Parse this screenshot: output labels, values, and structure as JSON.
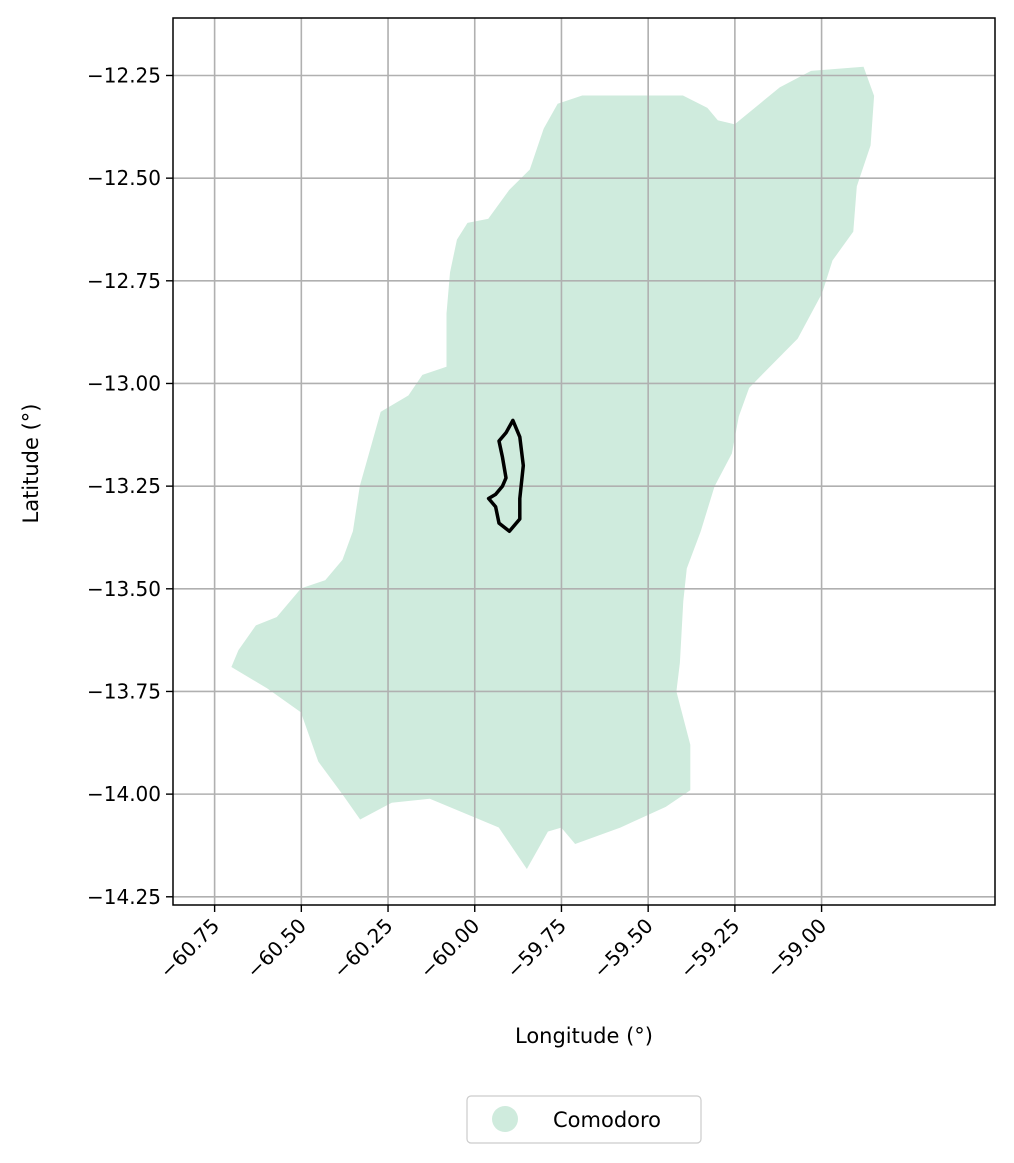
{
  "chart_data": {
    "type": "map",
    "xlabel": "Longitude (°)",
    "ylabel": "Latitude (°)",
    "xlim": [
      -60.87,
      -58.5
    ],
    "ylim": [
      -14.27,
      -12.11
    ],
    "grid": true,
    "x_ticks": [
      "−60.75",
      "−60.50",
      "−60.25",
      "−60.00",
      "−59.75",
      "−59.50",
      "−59.25",
      "−59.00"
    ],
    "x_tick_values": [
      -60.75,
      -60.5,
      -60.25,
      -60.0,
      -59.75,
      -59.5,
      -59.25,
      -59.0
    ],
    "y_ticks": [
      "−12.25",
      "−12.50",
      "−12.75",
      "−13.00",
      "−13.25",
      "−13.50",
      "−13.75",
      "−14.00",
      "−14.25"
    ],
    "y_tick_values": [
      -12.25,
      -12.5,
      -12.75,
      -13.0,
      -13.25,
      -13.5,
      -13.75,
      -14.0,
      -14.25
    ],
    "legend": {
      "placement": "bottom-center",
      "entries": [
        {
          "label": "Comodoro",
          "color": "#cfebdd",
          "marker": "circle"
        }
      ]
    },
    "region": {
      "name": "Comodoro",
      "color": "#cfebdd",
      "outline": [
        [
          -60.7,
          -13.69
        ],
        [
          -60.68,
          -13.65
        ],
        [
          -60.63,
          -13.59
        ],
        [
          -60.57,
          -13.57
        ],
        [
          -60.5,
          -13.5
        ],
        [
          -60.43,
          -13.48
        ],
        [
          -60.38,
          -13.43
        ],
        [
          -60.35,
          -13.36
        ],
        [
          -60.33,
          -13.25
        ],
        [
          -60.3,
          -13.16
        ],
        [
          -60.27,
          -13.07
        ],
        [
          -60.19,
          -13.03
        ],
        [
          -60.15,
          -12.98
        ],
        [
          -60.08,
          -12.96
        ],
        [
          -60.08,
          -12.83
        ],
        [
          -60.07,
          -12.73
        ],
        [
          -60.05,
          -12.65
        ],
        [
          -60.02,
          -12.61
        ],
        [
          -59.96,
          -12.6
        ],
        [
          -59.9,
          -12.53
        ],
        [
          -59.84,
          -12.48
        ],
        [
          -59.8,
          -12.38
        ],
        [
          -59.76,
          -12.32
        ],
        [
          -59.69,
          -12.3
        ],
        [
          -59.5,
          -12.3
        ],
        [
          -59.4,
          -12.3
        ],
        [
          -59.33,
          -12.33
        ],
        [
          -59.3,
          -12.36
        ],
        [
          -59.25,
          -12.37
        ],
        [
          -59.12,
          -12.28
        ],
        [
          -59.03,
          -12.24
        ],
        [
          -58.88,
          -12.23
        ],
        [
          -58.85,
          -12.3
        ],
        [
          -58.86,
          -12.42
        ],
        [
          -58.9,
          -12.52
        ],
        [
          -58.91,
          -12.63
        ],
        [
          -58.97,
          -12.7
        ],
        [
          -59.0,
          -12.78
        ],
        [
          -59.07,
          -12.89
        ],
        [
          -59.14,
          -12.95
        ],
        [
          -59.21,
          -13.01
        ],
        [
          -59.24,
          -13.08
        ],
        [
          -59.26,
          -13.17
        ],
        [
          -59.31,
          -13.25
        ],
        [
          -59.35,
          -13.36
        ],
        [
          -59.39,
          -13.45
        ],
        [
          -59.4,
          -13.53
        ],
        [
          -59.41,
          -13.68
        ],
        [
          -59.42,
          -13.75
        ],
        [
          -59.38,
          -13.88
        ],
        [
          -59.38,
          -13.99
        ],
        [
          -59.45,
          -14.03
        ],
        [
          -59.58,
          -14.08
        ],
        [
          -59.71,
          -14.12
        ],
        [
          -59.75,
          -14.08
        ],
        [
          -59.79,
          -14.09
        ],
        [
          -59.85,
          -14.18
        ],
        [
          -59.93,
          -14.08
        ],
        [
          -60.13,
          -14.01
        ],
        [
          -60.24,
          -14.02
        ],
        [
          -60.33,
          -14.06
        ],
        [
          -60.38,
          -14.0
        ],
        [
          -60.45,
          -13.92
        ],
        [
          -60.5,
          -13.8
        ],
        [
          -60.6,
          -13.74
        ],
        [
          -60.7,
          -13.69
        ]
      ]
    },
    "highlight": {
      "color": "#000000",
      "outline": [
        [
          -59.89,
          -13.09
        ],
        [
          -59.91,
          -13.12
        ],
        [
          -59.93,
          -13.14
        ],
        [
          -59.92,
          -13.18
        ],
        [
          -59.91,
          -13.23
        ],
        [
          -59.92,
          -13.25
        ],
        [
          -59.94,
          -13.27
        ],
        [
          -59.96,
          -13.28
        ],
        [
          -59.94,
          -13.3
        ],
        [
          -59.93,
          -13.34
        ],
        [
          -59.9,
          -13.36
        ],
        [
          -59.87,
          -13.33
        ],
        [
          -59.87,
          -13.28
        ],
        [
          -59.86,
          -13.2
        ],
        [
          -59.87,
          -13.13
        ],
        [
          -59.89,
          -13.09
        ]
      ]
    }
  }
}
